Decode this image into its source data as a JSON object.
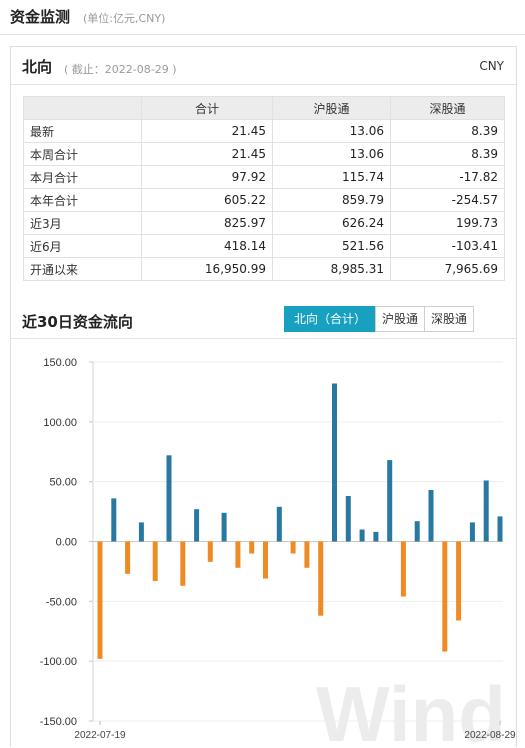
{
  "header": {
    "title": "资金监测",
    "unit": "(单位:亿元,CNY)"
  },
  "panel": {
    "title": "北向",
    "asof": "( 截止：2022-08-29 )",
    "currency": "CNY"
  },
  "table": {
    "headers": [
      "",
      "合计",
      "沪股通",
      "深股通"
    ],
    "rows": [
      {
        "label": "最新",
        "total": "21.45",
        "sh": "13.06",
        "sz": "8.39"
      },
      {
        "label": "本周合计",
        "total": "21.45",
        "sh": "13.06",
        "sz": "8.39"
      },
      {
        "label": "本月合计",
        "total": "97.92",
        "sh": "115.74",
        "sz": "-17.82"
      },
      {
        "label": "本年合计",
        "total": "605.22",
        "sh": "859.79",
        "sz": "-254.57"
      },
      {
        "label": "近3月",
        "total": "825.97",
        "sh": "626.24",
        "sz": "199.73"
      },
      {
        "label": "近6月",
        "total": "418.14",
        "sh": "521.56",
        "sz": "-103.41"
      },
      {
        "label": "开通以来",
        "total": "16,950.99",
        "sh": "8,985.31",
        "sz": "7,965.69"
      }
    ]
  },
  "section": {
    "title": "近30日资金流向",
    "tabs": [
      "北向（合计）",
      "沪股通",
      "深股通"
    ],
    "active_tab": 0
  },
  "chart_data": {
    "type": "bar",
    "ylim": [
      -150,
      150
    ],
    "yticks": [
      -150,
      -100,
      -50,
      0,
      50,
      100,
      150
    ],
    "ytick_labels": [
      "-150.00",
      "-100.00",
      "-50.00",
      "0.00",
      "50.00",
      "100.00",
      "150.00"
    ],
    "x_start_label": "2022-07-19",
    "x_end_label": "2022-08-29",
    "watermark": "Wind",
    "pos_color": "#2878a2",
    "neg_color": "#ef8a24",
    "values": [
      -98,
      36,
      -27,
      16,
      -33,
      72,
      -37,
      27,
      -17,
      24,
      -22,
      -10,
      -31,
      29,
      -10,
      -22,
      -62,
      132,
      38,
      10,
      8,
      68,
      -46,
      17,
      43,
      -92,
      -66,
      16,
      51,
      21
    ]
  }
}
